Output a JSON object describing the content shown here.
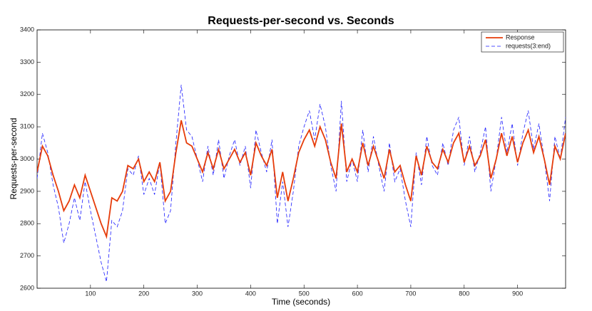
{
  "chart_data": {
    "type": "line",
    "title": "Requests-per-second vs. Seconds",
    "x_label": "Time (seconds)",
    "y_label": "Requests-per-second",
    "xlim": [
      0,
      990
    ],
    "ylim": [
      2600,
      3400
    ],
    "xticks": [
      100,
      200,
      300,
      400,
      500,
      600,
      700,
      800,
      900
    ],
    "yticks": [
      2600,
      2700,
      2800,
      2900,
      3000,
      3100,
      3200,
      3300,
      3400
    ],
    "legend_position": "upper right",
    "x": [
      0,
      10,
      20,
      30,
      40,
      50,
      60,
      70,
      80,
      90,
      100,
      110,
      120,
      130,
      140,
      150,
      160,
      170,
      180,
      190,
      200,
      210,
      220,
      230,
      240,
      250,
      260,
      270,
      280,
      290,
      300,
      310,
      320,
      330,
      340,
      350,
      360,
      370,
      380,
      390,
      400,
      410,
      420,
      430,
      440,
      450,
      460,
      470,
      480,
      490,
      500,
      510,
      520,
      530,
      540,
      550,
      560,
      570,
      580,
      590,
      600,
      610,
      620,
      630,
      640,
      650,
      660,
      670,
      680,
      690,
      700,
      710,
      720,
      730,
      740,
      750,
      760,
      770,
      780,
      790,
      800,
      810,
      820,
      830,
      840,
      850,
      860,
      870,
      880,
      890,
      900,
      910,
      920,
      930,
      940,
      950,
      960,
      970,
      980,
      990
    ],
    "series": [
      {
        "name": "Response",
        "color": "#e63c0a",
        "style": "solid",
        "values": [
          2960,
          3040,
          3010,
          2950,
          2900,
          2840,
          2870,
          2920,
          2880,
          2950,
          2900,
          2850,
          2800,
          2760,
          2880,
          2870,
          2900,
          2980,
          2970,
          3000,
          2930,
          2960,
          2930,
          2990,
          2870,
          2900,
          3020,
          3120,
          3050,
          3040,
          3000,
          2960,
          3020,
          2970,
          3030,
          2970,
          3000,
          3030,
          2990,
          3020,
          2950,
          3050,
          3010,
          2980,
          3030,
          2880,
          2960,
          2870,
          2940,
          3020,
          3060,
          3090,
          3040,
          3100,
          3060,
          2990,
          2940,
          3110,
          2960,
          3000,
          2960,
          3050,
          2980,
          3040,
          2990,
          2940,
          3030,
          2960,
          2980,
          2920,
          2870,
          3010,
          2950,
          3040,
          2990,
          2970,
          3030,
          2990,
          3050,
          3080,
          2990,
          3040,
          2980,
          3010,
          3060,
          2940,
          3000,
          3080,
          3010,
          3070,
          2990,
          3050,
          3090,
          3020,
          3070,
          3000,
          2920,
          3040,
          3000,
          3080
        ]
      },
      {
        "name": "requests(3:end)",
        "color": "#1a1aff",
        "style": "dashed",
        "values": [
          2940,
          3080,
          3020,
          2920,
          2850,
          2740,
          2800,
          2880,
          2810,
          2930,
          2840,
          2760,
          2680,
          2620,
          2810,
          2790,
          2840,
          2970,
          2950,
          3010,
          2890,
          2940,
          2890,
          2990,
          2800,
          2840,
          3050,
          3230,
          3090,
          3070,
          3000,
          2930,
          3040,
          2950,
          3060,
          2940,
          3010,
          3060,
          2980,
          3040,
          2910,
          3090,
          3020,
          2960,
          3060,
          2800,
          2930,
          2790,
          2900,
          3040,
          3100,
          3150,
          3060,
          3170,
          3100,
          2980,
          2900,
          3180,
          2930,
          3000,
          2930,
          3090,
          2960,
          3070,
          2980,
          2900,
          3050,
          2930,
          2970,
          2870,
          2790,
          3020,
          2920,
          3070,
          2980,
          2950,
          3050,
          2980,
          3090,
          3130,
          2980,
          3070,
          2960,
          3020,
          3100,
          2900,
          3000,
          3130,
          3020,
          3110,
          2980,
          3080,
          3150,
          3030,
          3110,
          3000,
          2870,
          3070,
          3000,
          3130
        ]
      }
    ]
  }
}
